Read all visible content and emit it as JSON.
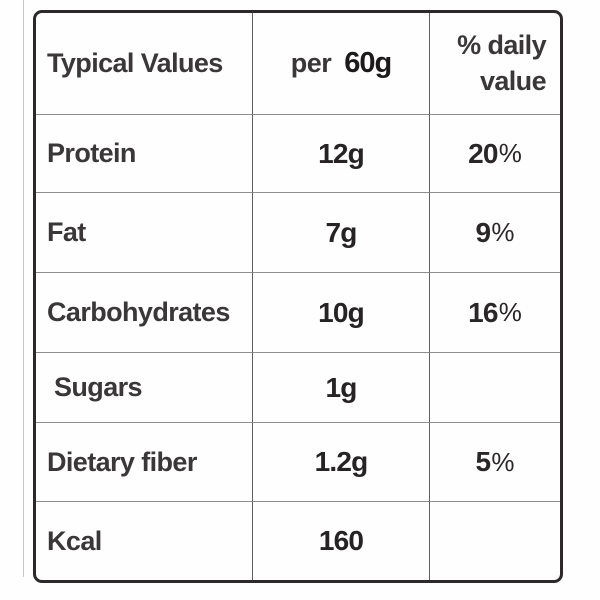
{
  "table": {
    "header": {
      "col1": "Typical Values",
      "col2_prefix": "per",
      "col2_value": "60g",
      "col3": "% daily value"
    },
    "rows": [
      {
        "label": "Protein",
        "amount": "12g",
        "dv_num": "20",
        "dv_sign": "%"
      },
      {
        "label": "Fat",
        "amount": "7g",
        "dv_num": "9",
        "dv_sign": "%"
      },
      {
        "label": "Carbohydrates",
        "amount": "10g",
        "dv_num": "16",
        "dv_sign": "%"
      },
      {
        "label": "Sugars",
        "amount": "1g",
        "dv_num": "",
        "dv_sign": ""
      },
      {
        "label": "Dietary fiber",
        "amount": "1.2g",
        "dv_num": "5",
        "dv_sign": "%"
      },
      {
        "label": "Kcal",
        "amount": "160",
        "dv_num": "",
        "dv_sign": ""
      }
    ],
    "colors": {
      "label_text": "#3a3738",
      "value_text": "#262324",
      "outer_border": "#2c292b",
      "grid_line_h": "#8f8d8e",
      "grid_line_v": "#5f5d5e",
      "background": "#fffefe"
    }
  }
}
